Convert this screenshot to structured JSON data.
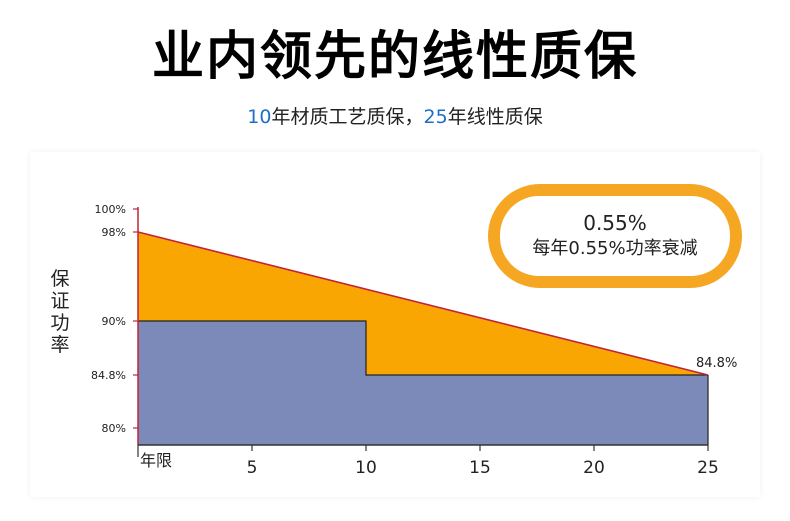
{
  "title": "业内领先的线性质保",
  "subtitle": {
    "num1": "10",
    "part1": "年材质工艺质保，",
    "num2": "25",
    "part2": "年线性质保"
  },
  "badge": {
    "rate": "0.55%",
    "text": "每年0.55%功率衰减"
  },
  "colors": {
    "orange": "#f9a602",
    "blue": "#7b8ab8",
    "line": "#c0233a",
    "badge": "#f5a623",
    "subtitle_num": "#1f6fc9"
  },
  "chart_data": {
    "type": "area",
    "ylabel": "保证功率",
    "xlabel": "年限",
    "xlim": [
      0,
      25
    ],
    "ylim": [
      80,
      100
    ],
    "x_ticks": [
      {
        "value": 5,
        "label": "5"
      },
      {
        "value": 10,
        "label": "10"
      },
      {
        "value": 15,
        "label": "15"
      },
      {
        "value": 20,
        "label": "20"
      },
      {
        "value": 25,
        "label": "25"
      }
    ],
    "y_ticks": [
      {
        "value": 100,
        "label": "100%"
      },
      {
        "value": 98,
        "label": "98%"
      },
      {
        "value": 90,
        "label": "90%"
      },
      {
        "value": 84.8,
        "label": "84.8%"
      },
      {
        "value": 80,
        "label": "80%"
      }
    ],
    "series": [
      {
        "x": [
          0,
          25
        ],
        "y": [
          98,
          84.8
        ]
      },
      {
        "x": [
          0,
          10,
          10,
          25
        ],
        "y": [
          90,
          90,
          84.8,
          84.8
        ]
      }
    ],
    "annotations": [
      {
        "x": 25,
        "y": 84.8,
        "text": "84.8%"
      }
    ]
  }
}
